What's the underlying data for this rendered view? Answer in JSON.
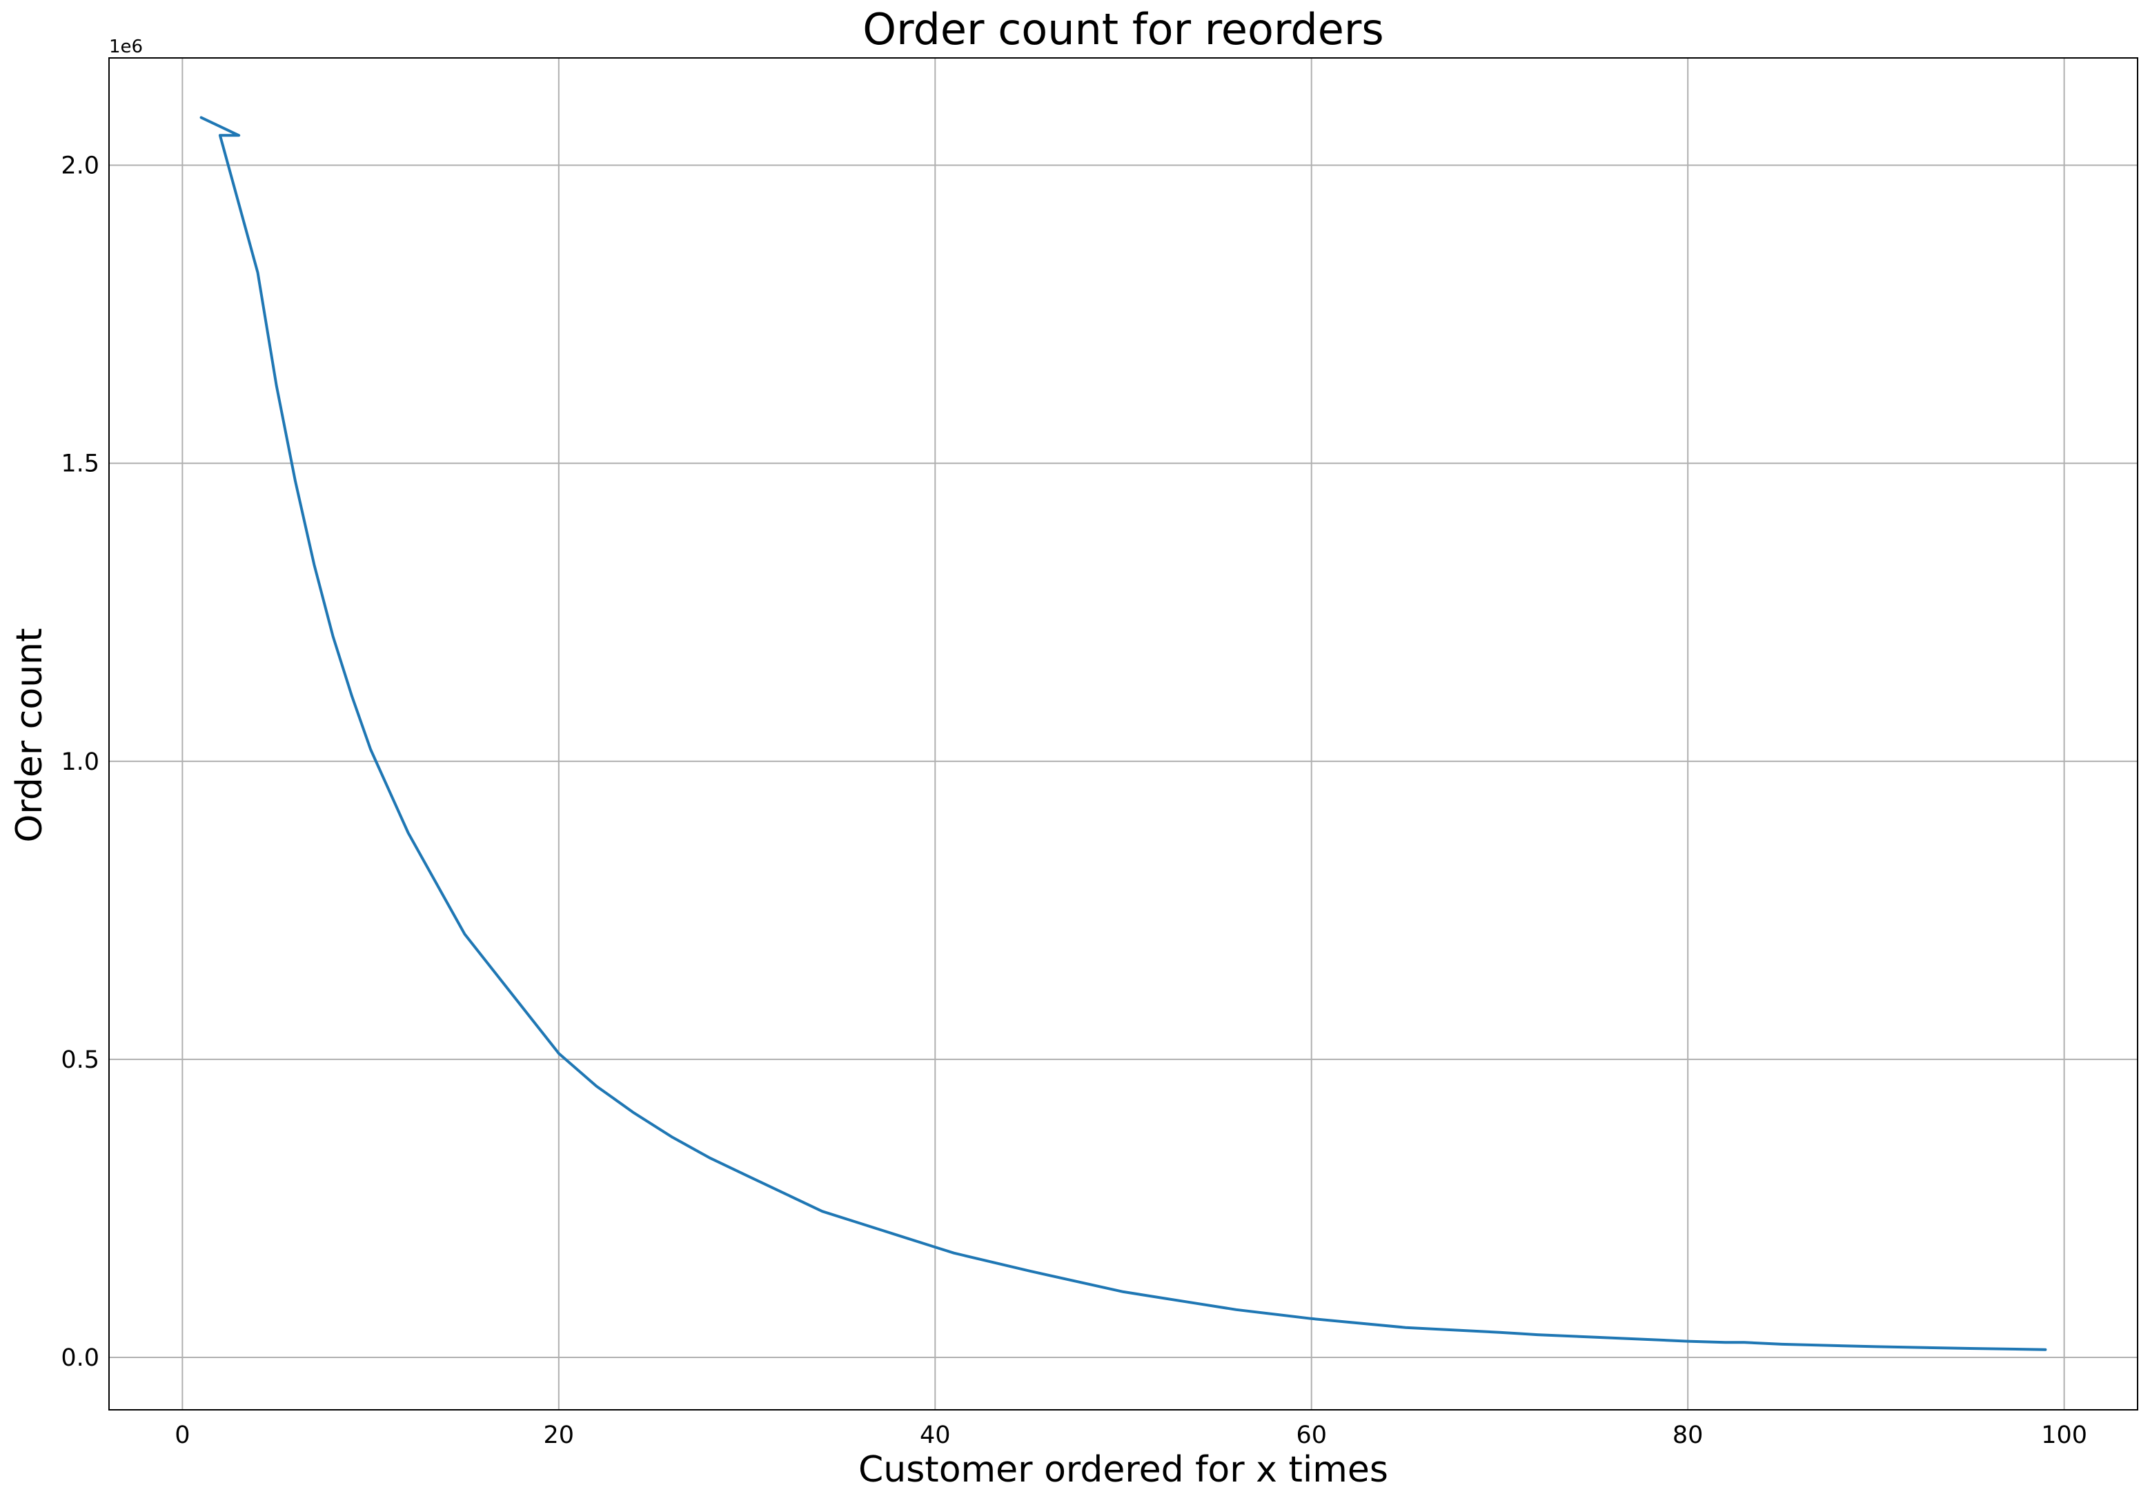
{
  "chart_data": {
    "type": "line",
    "title": "Order count for reorders",
    "xlabel": "Customer ordered for x times",
    "ylabel": "Order count",
    "y_offset_text": "1e6",
    "xlim": [
      -3.9,
      103.9
    ],
    "ylim": [
      -0.088,
      2.18
    ],
    "xticks": [
      0,
      20,
      40,
      60,
      80,
      100
    ],
    "xtick_labels": [
      "0",
      "20",
      "40",
      "60",
      "80",
      "100"
    ],
    "yticks": [
      0.0,
      0.5,
      1.0,
      1.5,
      2.0
    ],
    "ytick_labels": [
      "0.0",
      "0.5",
      "1.0",
      "1.5",
      "2.0"
    ],
    "grid": true,
    "series": [
      {
        "color": "#1f77b4",
        "x": [
          1,
          3,
          2,
          4,
          5,
          6,
          7,
          8,
          9,
          10,
          12,
          15,
          18,
          20,
          22,
          24,
          26,
          28,
          30,
          32,
          34,
          36,
          38,
          40,
          41,
          45,
          50,
          54,
          55,
          56,
          60,
          65,
          70,
          71,
          72,
          75,
          80,
          82,
          83,
          85,
          90,
          95,
          99
        ],
        "y": [
          2.08,
          2.05,
          2.05,
          1.82,
          1.63,
          1.47,
          1.33,
          1.21,
          1.11,
          1.02,
          0.88,
          0.71,
          0.59,
          0.51,
          0.455,
          0.41,
          0.37,
          0.335,
          0.305,
          0.275,
          0.245,
          0.225,
          0.205,
          0.185,
          0.175,
          0.145,
          0.11,
          0.09,
          0.085,
          0.08,
          0.065,
          0.05,
          0.042,
          0.04,
          0.038,
          0.034,
          0.027,
          0.025,
          0.025,
          0.022,
          0.018,
          0.015,
          0.013
        ]
      }
    ]
  }
}
